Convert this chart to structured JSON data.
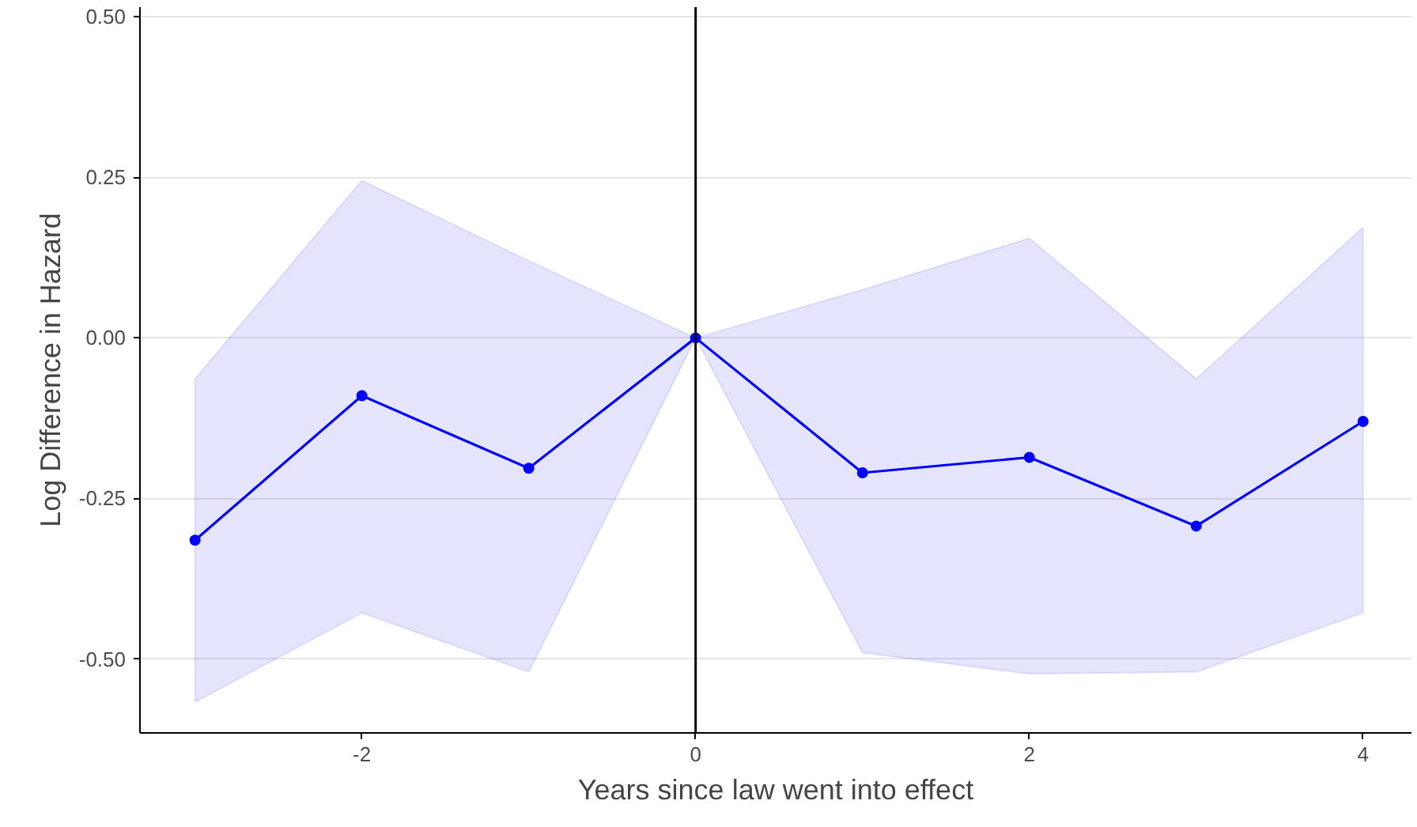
{
  "chart_data": {
    "type": "line",
    "xlabel": "Years since law went into effect",
    "ylabel": "Log Difference in Hazard",
    "x": [
      -3,
      -2,
      -1,
      0,
      1,
      2,
      3,
      4
    ],
    "series": [
      {
        "color": "#0000ff",
        "values": [
          -0.315,
          -0.09,
          -0.203,
          0,
          -0.21,
          -0.186,
          -0.293,
          -0.13
        ],
        "lower": [
          -0.567,
          -0.428,
          -0.52,
          0,
          -0.49,
          -0.523,
          -0.52,
          -0.428
        ],
        "upper": [
          -0.064,
          0.245,
          0.12,
          0,
          0.075,
          0.155,
          -0.064,
          0.172
        ]
      }
    ],
    "xlim": [
      -3.33,
      4.29
    ],
    "ylim": [
      -0.615,
      0.515
    ],
    "xticks": [
      {
        "value": -2,
        "label": "-2"
      },
      {
        "value": 0,
        "label": "0"
      },
      {
        "value": 2,
        "label": "2"
      },
      {
        "value": 4,
        "label": "4"
      }
    ],
    "yticks": [
      {
        "value": -0.5,
        "label": "-0.50"
      },
      {
        "value": -0.25,
        "label": "-0.25"
      },
      {
        "value": 0,
        "label": "0.00"
      },
      {
        "value": 0.25,
        "label": "0.25"
      },
      {
        "value": 0.5,
        "label": "0.50"
      }
    ],
    "ref_lines": [
      {
        "axis": "x",
        "value": 0,
        "color": "#000000"
      }
    ],
    "grid": "y",
    "marker": "circle",
    "line_style": "solid"
  }
}
